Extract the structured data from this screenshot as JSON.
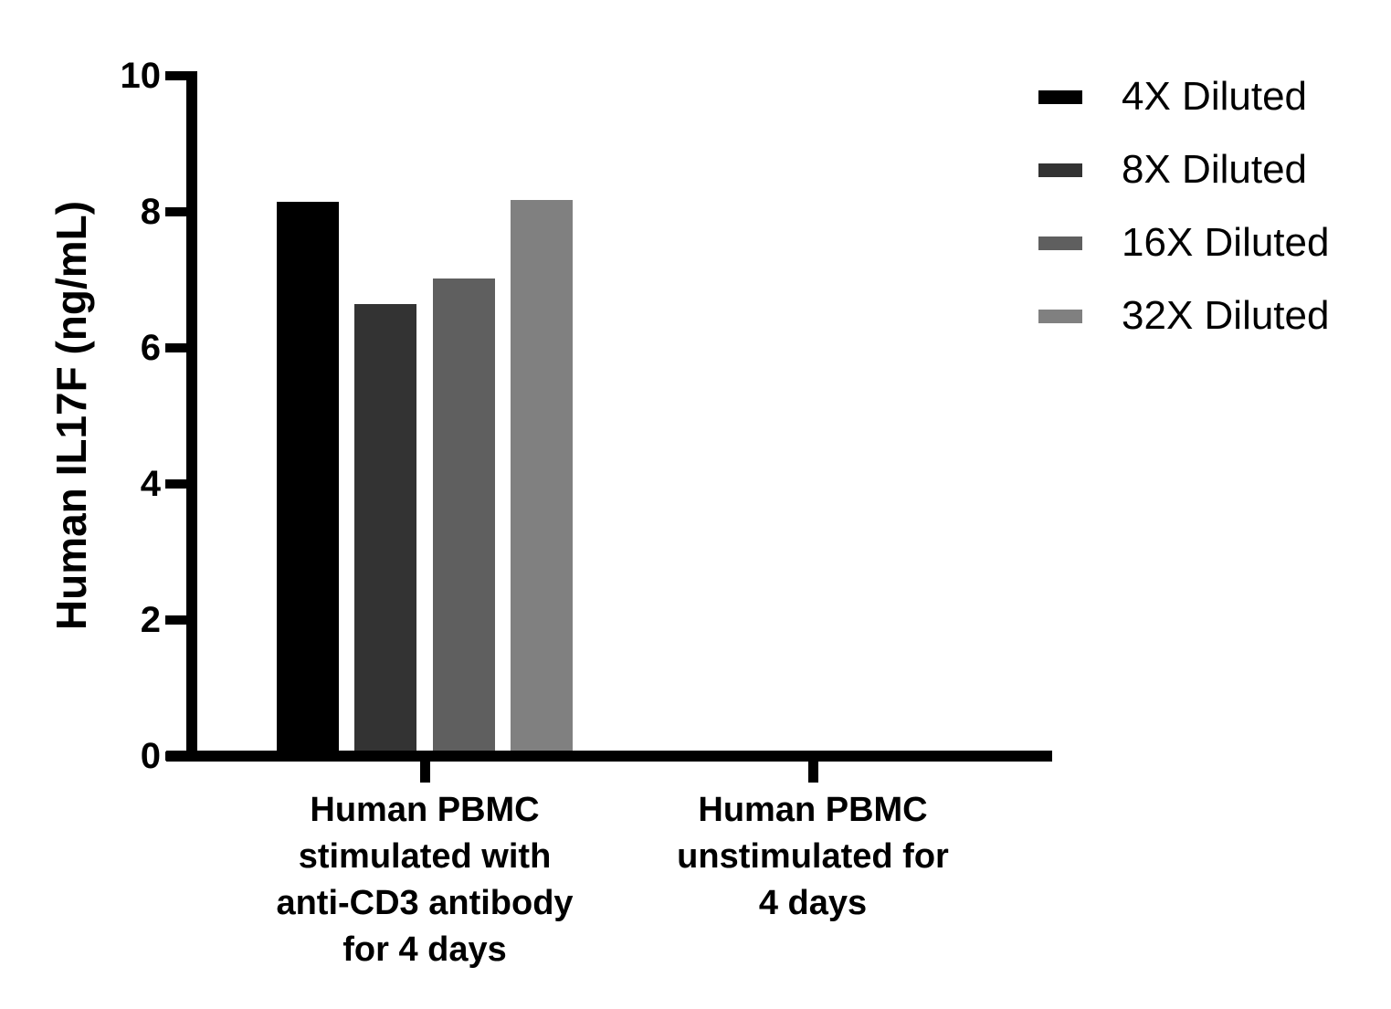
{
  "chart_data": {
    "type": "bar",
    "title": "",
    "ylabel": "Human IL17F (ng/mL)",
    "xlabel": "",
    "ylim": [
      0,
      10
    ],
    "yticks": [
      0,
      2,
      4,
      6,
      8,
      10
    ],
    "grid": false,
    "legend_position": "top-right",
    "categories": [
      {
        "label": "Human PBMC stimulated with anti-CD3 antibody for 4 days",
        "lines": [
          "Human PBMC",
          "stimulated with",
          "anti-CD3 antibody",
          "for 4 days"
        ]
      },
      {
        "label": "Human PBMC unstimulated for 4 days",
        "lines": [
          "Human PBMC",
          "unstimulated for",
          "4 days"
        ]
      }
    ],
    "series": [
      {
        "name": "4X Diluted",
        "color": "#000000",
        "values": [
          8.15,
          0
        ]
      },
      {
        "name": "8X Diluted",
        "color": "#333333",
        "values": [
          6.65,
          0
        ]
      },
      {
        "name": "16X Diluted",
        "color": "#5F5F5F",
        "values": [
          7.02,
          0
        ]
      },
      {
        "name": "32X Diluted",
        "color": "#808080",
        "values": [
          8.18,
          0
        ]
      }
    ]
  },
  "colors": {
    "axis": "#000000",
    "text": "#000000",
    "background": "#FFFFFF"
  }
}
